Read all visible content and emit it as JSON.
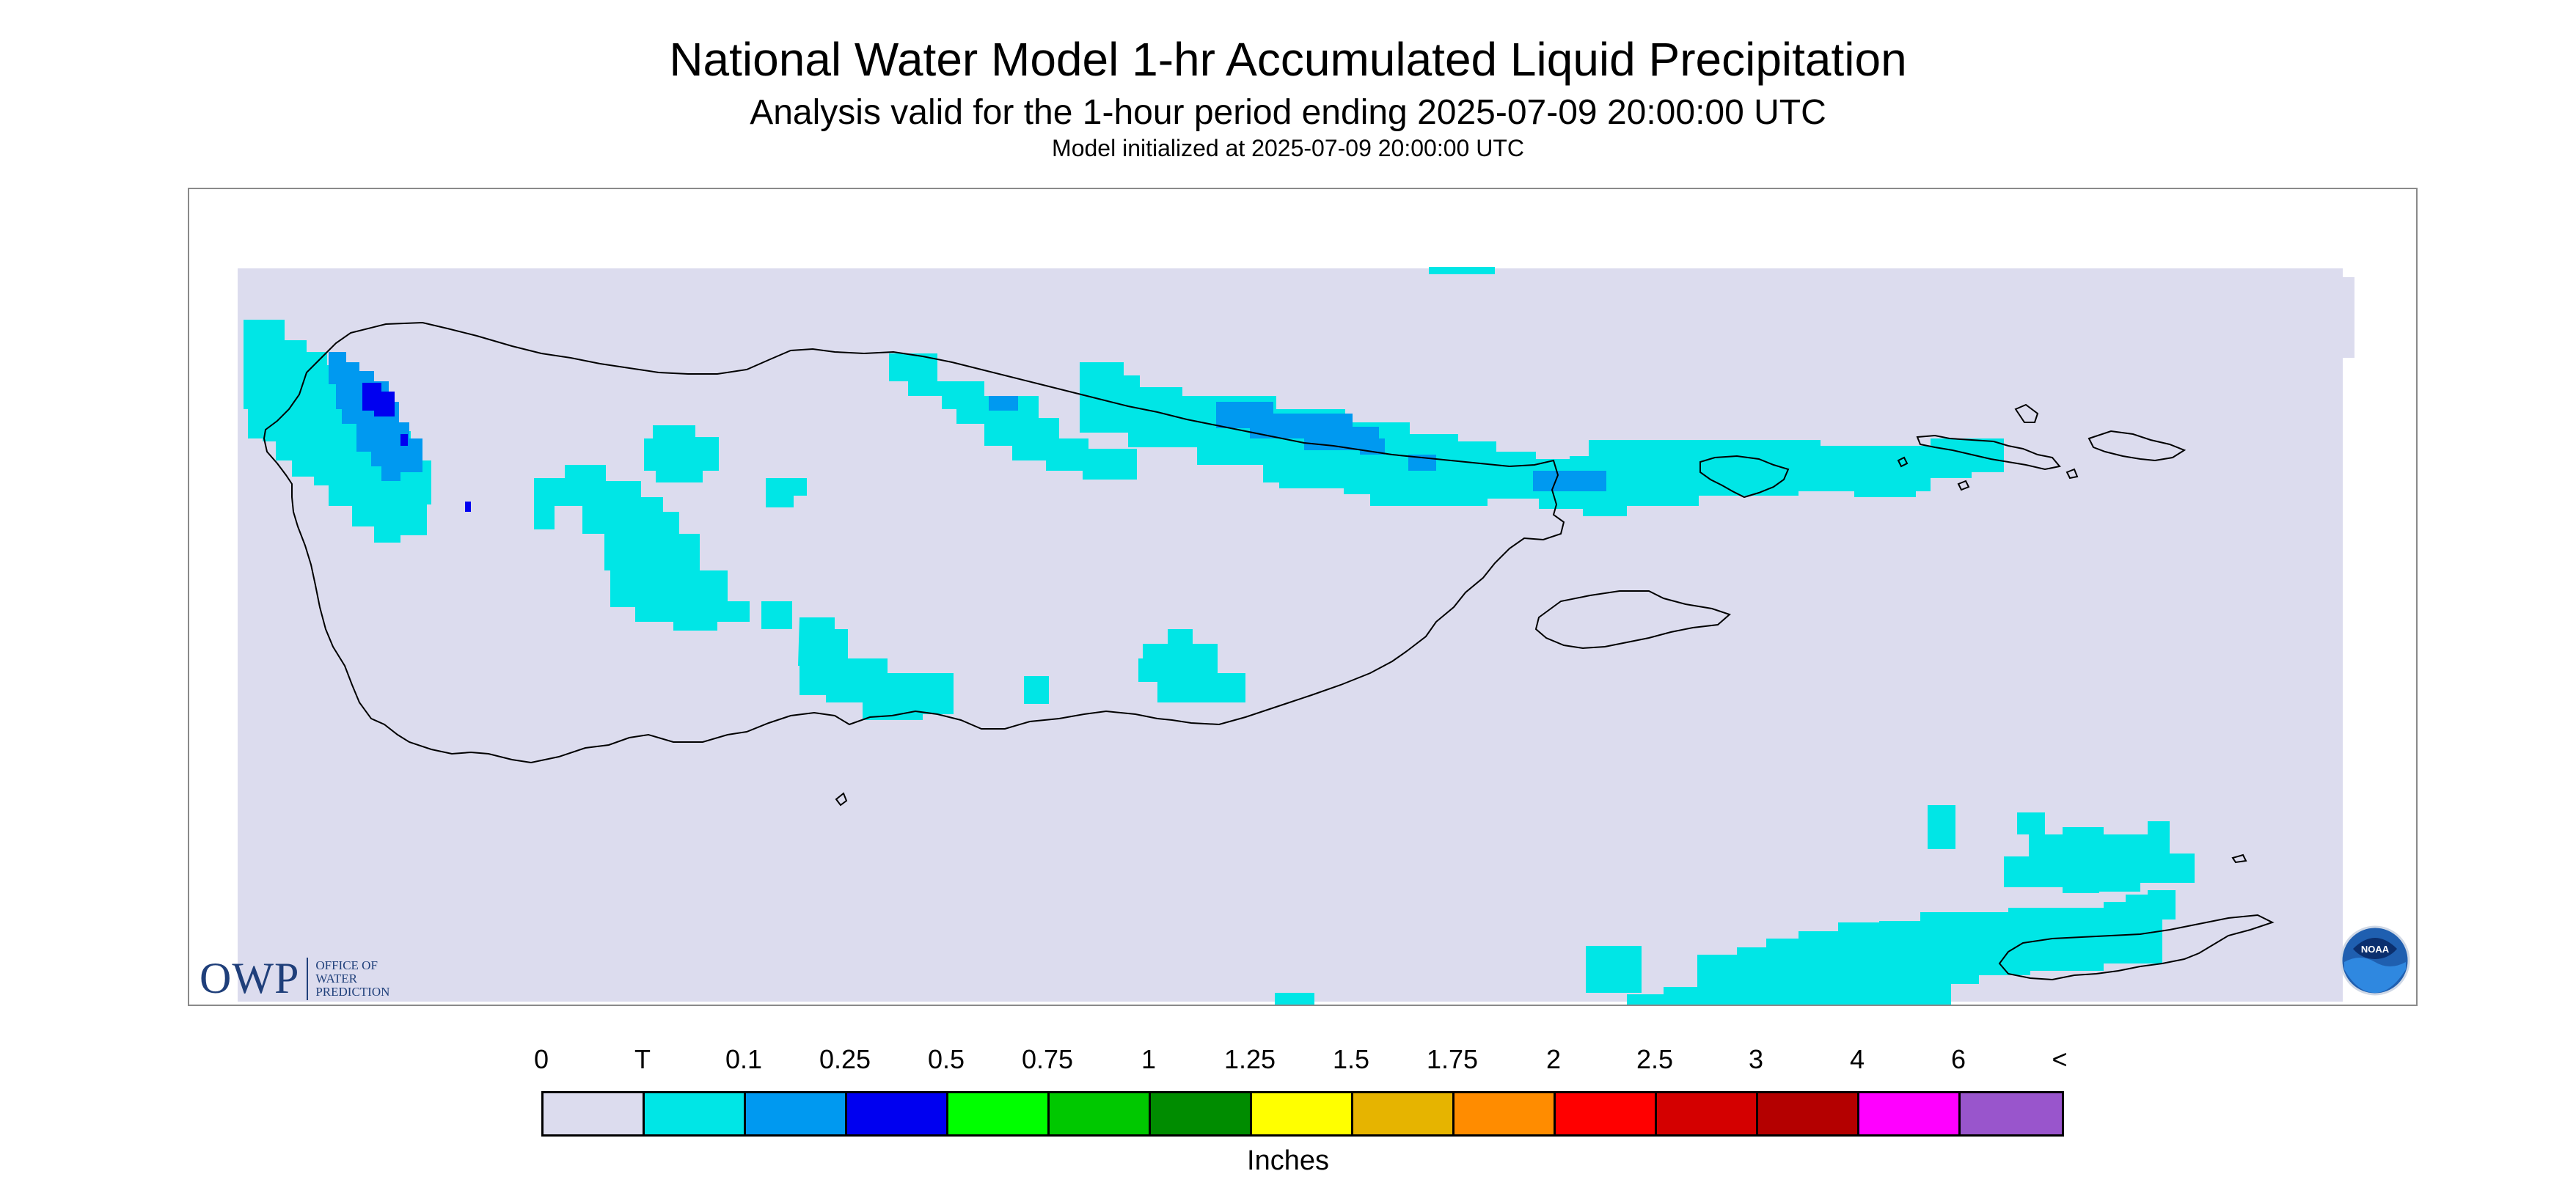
{
  "title": "National Water Model 1-hr Accumulated Liquid Precipitation",
  "subtitle": "Analysis valid for the 1-hour period ending 2025-07-09 20:00:00 UTC",
  "model_init": "Model initialized at 2025-07-09 20:00:00 UTC",
  "colors": {
    "no_data_bg": "#dcdcee",
    "trace": "#00e6e6",
    "light": "#0099f0",
    "moderate": "#0000f0",
    "coastline": "#000000"
  },
  "logos": {
    "owp_letters": "OWP",
    "owp_text": [
      "OFFICE OF",
      "WATER",
      "PREDICTION"
    ],
    "noaa_text": "NOAA",
    "owp_icon": "owp-logo",
    "noaa_icon": "noaa-logo"
  },
  "legend": {
    "labels": [
      "0",
      "T",
      "0.1",
      "0.25",
      "0.5",
      "0.75",
      "1",
      "1.25",
      "1.5",
      "1.75",
      "2",
      "2.5",
      "3",
      "4",
      "6",
      "<"
    ],
    "colors": [
      "#dcdcee",
      "#00e6e6",
      "#0099f0",
      "#0000f0",
      "#00ff00",
      "#00c800",
      "#008c00",
      "#ffff00",
      "#e6b400",
      "#ff8c00",
      "#ff0000",
      "#d40000",
      "#b40000",
      "#ff00ff",
      "#9955cc"
    ],
    "unit": "Inches"
  }
}
